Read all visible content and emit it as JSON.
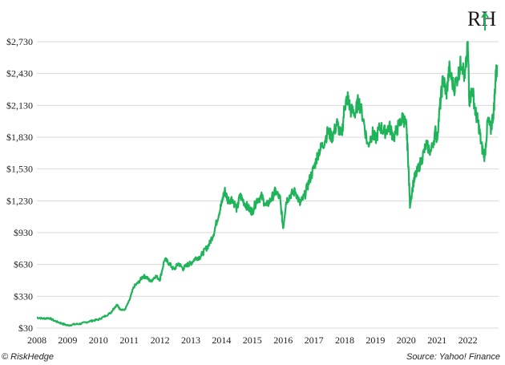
{
  "chart_data": {
    "type": "line",
    "title": "",
    "xlabel": "",
    "ylabel": "",
    "ylim": [
      30,
      2730
    ],
    "xlim": [
      2008,
      2023
    ],
    "y_ticks": [
      "$2,730",
      "$2,430",
      "$2,130",
      "$1,830",
      "$1,530",
      "$1,230",
      "$930",
      "$630",
      "$330",
      "$30"
    ],
    "y_tick_values": [
      2730,
      2430,
      2130,
      1830,
      1530,
      1230,
      930,
      630,
      330,
      30
    ],
    "x_ticks": [
      "2008",
      "2009",
      "2010",
      "2011",
      "2012",
      "2013",
      "2014",
      "2015",
      "2016",
      "2017",
      "2018",
      "2019",
      "2020",
      "2021",
      "2022"
    ],
    "x_tick_values": [
      2008,
      2009,
      2010,
      2011,
      2012,
      2013,
      2014,
      2015,
      2016,
      2017,
      2018,
      2019,
      2020,
      2021,
      2022
    ],
    "grid": true,
    "line_color": "#1fb35a",
    "series": [
      {
        "values": [
          [
            2008.0,
            130
          ],
          [
            2008.2,
            120
          ],
          [
            2008.4,
            125
          ],
          [
            2008.6,
            95
          ],
          [
            2008.8,
            75
          ],
          [
            2009.0,
            55
          ],
          [
            2009.2,
            65
          ],
          [
            2009.4,
            70
          ],
          [
            2009.6,
            85
          ],
          [
            2009.8,
            100
          ],
          [
            2010.0,
            110
          ],
          [
            2010.2,
            140
          ],
          [
            2010.4,
            175
          ],
          [
            2010.5,
            215
          ],
          [
            2010.6,
            250
          ],
          [
            2010.7,
            210
          ],
          [
            2010.85,
            200
          ],
          [
            2011.0,
            285
          ],
          [
            2011.15,
            420
          ],
          [
            2011.3,
            460
          ],
          [
            2011.45,
            520
          ],
          [
            2011.55,
            510
          ],
          [
            2011.7,
            470
          ],
          [
            2011.85,
            520
          ],
          [
            2012.0,
            490
          ],
          [
            2012.15,
            680
          ],
          [
            2012.3,
            640
          ],
          [
            2012.45,
            580
          ],
          [
            2012.6,
            640
          ],
          [
            2012.75,
            590
          ],
          [
            2012.9,
            630
          ],
          [
            2013.0,
            640
          ],
          [
            2013.15,
            690
          ],
          [
            2013.3,
            700
          ],
          [
            2013.45,
            760
          ],
          [
            2013.6,
            820
          ],
          [
            2013.75,
            930
          ],
          [
            2013.9,
            1100
          ],
          [
            2014.0,
            1200
          ],
          [
            2014.1,
            1330
          ],
          [
            2014.2,
            1240
          ],
          [
            2014.35,
            1250
          ],
          [
            2014.5,
            1150
          ],
          [
            2014.6,
            1280
          ],
          [
            2014.75,
            1210
          ],
          [
            2014.9,
            1150
          ],
          [
            2015.0,
            1130
          ],
          [
            2015.15,
            1240
          ],
          [
            2015.3,
            1270
          ],
          [
            2015.45,
            1180
          ],
          [
            2015.6,
            1240
          ],
          [
            2015.75,
            1320
          ],
          [
            2015.9,
            1250
          ],
          [
            2016.0,
            980
          ],
          [
            2016.1,
            1230
          ],
          [
            2016.25,
            1290
          ],
          [
            2016.4,
            1320
          ],
          [
            2016.55,
            1200
          ],
          [
            2016.7,
            1280
          ],
          [
            2016.85,
            1420
          ],
          [
            2017.0,
            1540
          ],
          [
            2017.15,
            1690
          ],
          [
            2017.3,
            1760
          ],
          [
            2017.45,
            1880
          ],
          [
            2017.6,
            1830
          ],
          [
            2017.75,
            1960
          ],
          [
            2017.9,
            1830
          ],
          [
            2018.0,
            2130
          ],
          [
            2018.1,
            2200
          ],
          [
            2018.2,
            2080
          ],
          [
            2018.35,
            2060
          ],
          [
            2018.45,
            2180
          ],
          [
            2018.6,
            2010
          ],
          [
            2018.75,
            1750
          ],
          [
            2018.9,
            1870
          ],
          [
            2019.0,
            1810
          ],
          [
            2019.15,
            1930
          ],
          [
            2019.3,
            1880
          ],
          [
            2019.45,
            1930
          ],
          [
            2019.6,
            1830
          ],
          [
            2019.75,
            1940
          ],
          [
            2019.9,
            2020
          ],
          [
            2020.0,
            1930
          ],
          [
            2020.05,
            1700
          ],
          [
            2020.12,
            1200
          ],
          [
            2020.25,
            1430
          ],
          [
            2020.35,
            1500
          ],
          [
            2020.5,
            1620
          ],
          [
            2020.65,
            1760
          ],
          [
            2020.8,
            1690
          ],
          [
            2020.95,
            1880
          ],
          [
            2021.0,
            1820
          ],
          [
            2021.1,
            2130
          ],
          [
            2021.2,
            2390
          ],
          [
            2021.3,
            2230
          ],
          [
            2021.4,
            2470
          ],
          [
            2021.55,
            2290
          ],
          [
            2021.7,
            2430
          ],
          [
            2021.8,
            2560
          ],
          [
            2021.9,
            2370
          ],
          [
            2022.0,
            2700
          ],
          [
            2022.05,
            2180
          ],
          [
            2022.15,
            2290
          ],
          [
            2022.25,
            2060
          ],
          [
            2022.35,
            1950
          ],
          [
            2022.45,
            1740
          ],
          [
            2022.55,
            1650
          ],
          [
            2022.65,
            1990
          ],
          [
            2022.75,
            1900
          ],
          [
            2022.85,
            2100
          ],
          [
            2022.9,
            2380
          ],
          [
            2022.95,
            2510
          ]
        ]
      }
    ],
    "footer_left": "© RiskHedge",
    "footer_right": "Source: Yahoo! Finance",
    "logo_text": "RH"
  }
}
